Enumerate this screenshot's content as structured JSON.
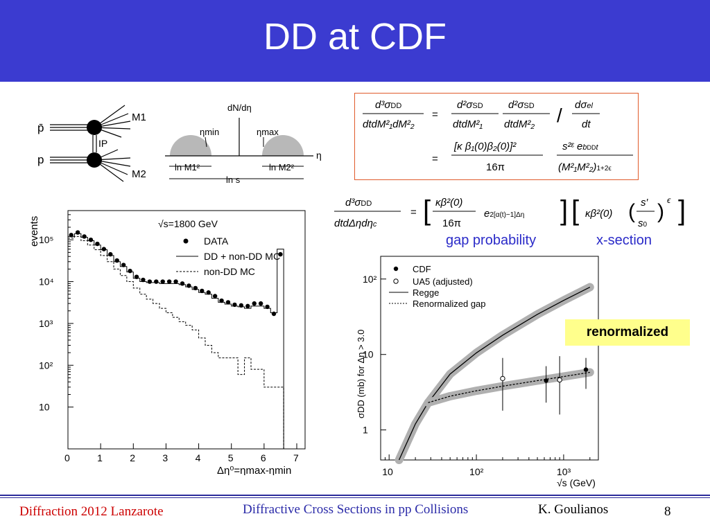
{
  "slide": {
    "title": "DD at CDF",
    "labels": {
      "gap_probability": "gap probability",
      "x_section": "x-section",
      "renormalized": "renormalized"
    },
    "footer": {
      "left": "Diffraction 2012 Lanzarote",
      "center": "Diffractive Cross Sections in pp Collisions",
      "author": "K. Goulianos",
      "page": "8"
    }
  },
  "diagram": {
    "lines": [
      "p̄",
      "p"
    ],
    "pomeron": "IP",
    "masses": [
      "M1",
      "M2"
    ],
    "eta_plot": {
      "ylabel": "dN/dη",
      "eta_min": "ηmin",
      "eta_max": "ηmax",
      "eta": "η",
      "ln_m1": "ln M1²",
      "ln_m2": "ln M2²",
      "ln_s": "ln s"
    }
  },
  "colors": {
    "title_bar": "#3b3bd0",
    "label_blue": "#2a2ac8",
    "footer_red": "#cc0000",
    "footer_blue": "#2a2aa8",
    "highlight": "#ffff8c",
    "formula_box": "#e05a2a",
    "band_gray": "#b0b0b0"
  },
  "chart_data": [
    {
      "type": "line",
      "annotation": "√s=1800 GeV",
      "xlabel": "Δη⁰=ηmax-ηmin",
      "ylabel": "events",
      "xlim": [
        0,
        7
      ],
      "ylim": [
        1,
        500000
      ],
      "log_y": true,
      "x_ticks": [
        "0",
        "1",
        "2",
        "3",
        "4",
        "5",
        "6",
        "7"
      ],
      "y_ticks": [
        "10",
        "10²",
        "10³",
        "10⁴",
        "10⁵"
      ],
      "legend": [
        "DATA",
        "DD + non-DD MC",
        "non-DD MC"
      ],
      "series": [
        {
          "name": "DATA",
          "x": [
            0.1,
            0.3,
            0.5,
            0.7,
            0.9,
            1.1,
            1.3,
            1.5,
            1.7,
            1.9,
            2.1,
            2.3,
            2.5,
            2.7,
            2.9,
            3.1,
            3.3,
            3.5,
            3.7,
            3.9,
            4.1,
            4.3,
            4.5,
            4.7,
            4.9,
            5.1,
            5.3,
            5.5,
            5.7,
            5.9,
            6.1,
            6.3,
            6.5
          ],
          "y": [
            130000,
            150000,
            120000,
            100000,
            80000,
            60000,
            45000,
            32000,
            25000,
            18000,
            13000,
            11000,
            10000,
            10000,
            10000,
            10000,
            10000,
            9000,
            8000,
            7000,
            6000,
            5500,
            4500,
            3500,
            3200,
            2800,
            2700,
            2600,
            3000,
            3000,
            2500,
            1700,
            45000
          ]
        },
        {
          "name": "DD + non-DD MC",
          "x": [
            0.1,
            0.3,
            0.5,
            0.7,
            0.9,
            1.1,
            1.3,
            1.5,
            1.7,
            1.9,
            2.1,
            2.3,
            2.5,
            2.7,
            2.9,
            3.1,
            3.3,
            3.5,
            3.7,
            3.9,
            4.1,
            4.3,
            4.5,
            4.7,
            4.9,
            5.1,
            5.3,
            5.5,
            5.7,
            5.9,
            6.1,
            6.3,
            6.5
          ],
          "y": [
            120000,
            140000,
            115000,
            95000,
            75000,
            58000,
            42000,
            30000,
            23000,
            17000,
            12000,
            10000,
            9500,
            9500,
            9000,
            9000,
            9000,
            8500,
            7500,
            6500,
            5500,
            5000,
            4000,
            3200,
            2900,
            2600,
            2500,
            2300,
            2600,
            2600,
            2300,
            1800,
            60000
          ]
        },
        {
          "name": "non-DD MC",
          "x": [
            0.1,
            0.3,
            0.5,
            0.7,
            0.9,
            1.1,
            1.3,
            1.5,
            1.7,
            1.9,
            2.1,
            2.3,
            2.5,
            2.7,
            2.9,
            3.1,
            3.3,
            3.5,
            3.7,
            3.9,
            4.1,
            4.3,
            4.5,
            4.7,
            4.9,
            5.1,
            5.3,
            5.5,
            5.7,
            5.9,
            6.1,
            6.3,
            6.5
          ],
          "y": [
            110000,
            120000,
            95000,
            75000,
            58000,
            42000,
            30000,
            20000,
            14000,
            10000,
            7000,
            5000,
            3800,
            3000,
            2300,
            1800,
            1400,
            1100,
            900,
            700,
            450,
            300,
            200,
            150,
            150,
            150,
            60,
            150,
            80,
            80,
            30,
            30,
            30
          ]
        }
      ]
    },
    {
      "type": "line",
      "xlabel": "√s (GeV)",
      "ylabel": "σDD (mb) for Δη > 3.0",
      "xlim": [
        8,
        2500
      ],
      "ylim": [
        0.4,
        200
      ],
      "log_x": true,
      "log_y": true,
      "x_ticks": [
        "10",
        "10²",
        "10³"
      ],
      "y_ticks": [
        "1",
        "10",
        "10²"
      ],
      "legend": [
        "CDF",
        "UA5 (adjusted)",
        "Regge",
        "Renormalized gap"
      ],
      "series": [
        {
          "name": "CDF",
          "x": [
            630,
            1800
          ],
          "y": [
            4.5,
            6.3
          ],
          "yerr_low": [
            2.3,
            3.5
          ],
          "yerr_high": [
            7.0,
            9.0
          ]
        },
        {
          "name": "UA5 (adjusted)",
          "x": [
            200,
            900
          ],
          "y": [
            4.8,
            4.6
          ],
          "yerr_low": [
            1.8,
            1.6
          ],
          "yerr_high": [
            9.0,
            9.5
          ]
        },
        {
          "name": "Regge",
          "x": [
            13,
            20,
            28,
            50,
            100,
            200,
            500,
            1000,
            2000
          ],
          "y": [
            0.4,
            1.2,
            2.3,
            5.5,
            10.5,
            18,
            34,
            52,
            78
          ]
        },
        {
          "name": "Renormalized gap",
          "x": [
            28,
            50,
            100,
            200,
            500,
            1000,
            2000
          ],
          "y": [
            2.3,
            2.8,
            3.3,
            3.8,
            4.5,
            5.1,
            5.8
          ]
        }
      ]
    }
  ]
}
